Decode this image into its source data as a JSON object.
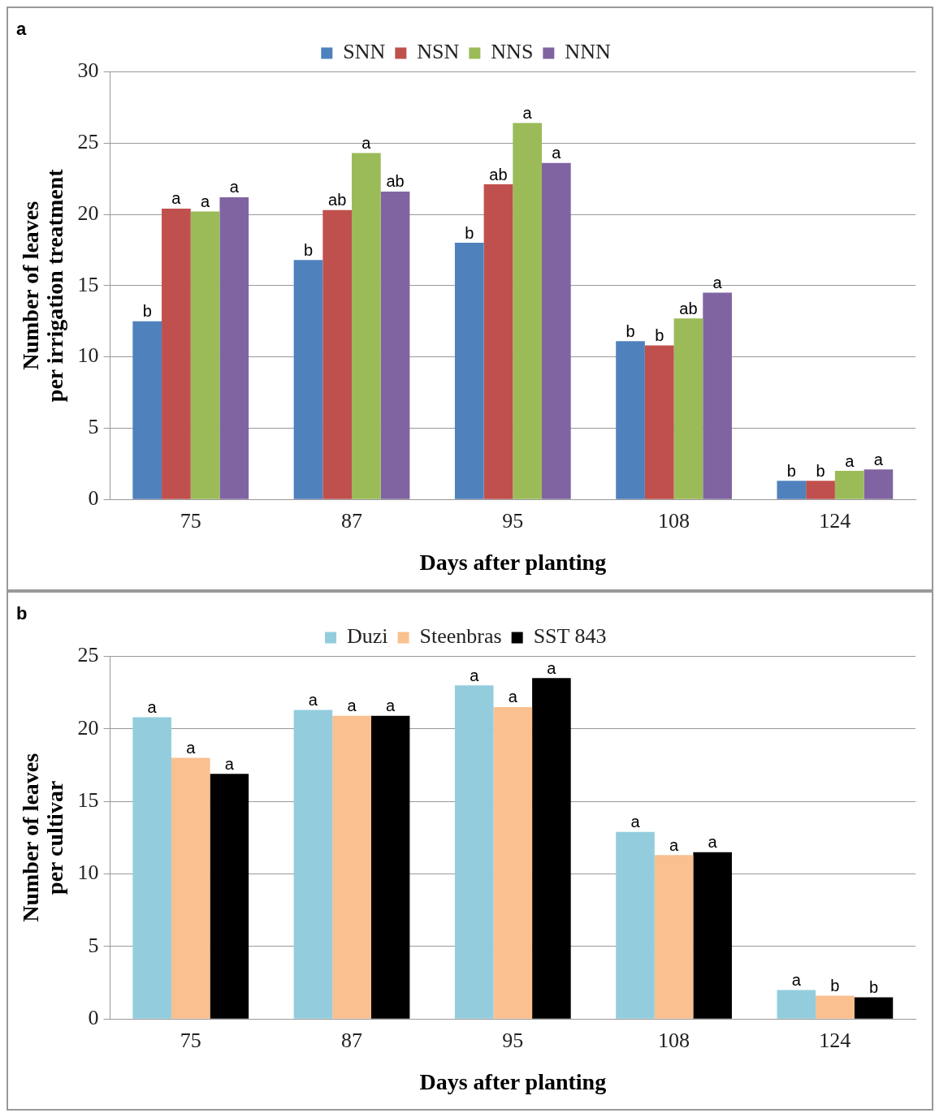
{
  "chart_data": [
    {
      "type": "bar",
      "title": "a",
      "xlabel": "Days after planting",
      "ylabel": "Number of leaves\nper irrigation treatment",
      "categories": [
        "75",
        "87",
        "95",
        "108",
        "124"
      ],
      "ylim": [
        0,
        30
      ],
      "yticks": [
        0,
        5,
        10,
        15,
        20,
        25,
        30
      ],
      "grid": "y",
      "legend": "top",
      "series": [
        {
          "name": "SNN",
          "color": "#4f81bd",
          "values": [
            12.5,
            16.8,
            18.0,
            11.1,
            1.3
          ],
          "value_labels": [
            "b",
            "b",
            "b",
            "b",
            "b"
          ]
        },
        {
          "name": "NSN",
          "color": "#c0504d",
          "values": [
            20.4,
            20.3,
            22.1,
            10.8,
            1.3
          ],
          "value_labels": [
            "a",
            "ab",
            "ab",
            "b",
            "b"
          ]
        },
        {
          "name": "NNS",
          "color": "#9bbb59",
          "values": [
            20.2,
            24.3,
            26.4,
            12.7,
            2.0
          ],
          "value_labels": [
            "a",
            "a",
            "a",
            "ab",
            "a"
          ]
        },
        {
          "name": "NNN",
          "color": "#8064a2",
          "values": [
            21.2,
            21.6,
            23.6,
            14.5,
            2.1
          ],
          "value_labels": [
            "a",
            "ab",
            "a",
            "a",
            "a"
          ]
        }
      ]
    },
    {
      "type": "bar",
      "title": "b",
      "xlabel": "Days after planting",
      "ylabel": "Number of leaves\nper cultivar",
      "categories": [
        "75",
        "87",
        "95",
        "108",
        "124"
      ],
      "ylim": [
        0,
        25
      ],
      "yticks": [
        0,
        5,
        10,
        15,
        20,
        25
      ],
      "grid": "y",
      "legend": "top",
      "series": [
        {
          "name": "Duzi",
          "color": "#93cddd",
          "values": [
            20.8,
            21.3,
            23.0,
            12.9,
            2.0
          ],
          "value_labels": [
            "a",
            "a",
            "a",
            "a",
            "a"
          ]
        },
        {
          "name": "Steenbras",
          "color": "#fac090",
          "values": [
            18.0,
            20.9,
            21.5,
            11.3,
            1.6
          ],
          "value_labels": [
            "a",
            "a",
            "a",
            "a",
            "b"
          ]
        },
        {
          "name": "SST 843",
          "color": "#000000",
          "values": [
            16.9,
            20.9,
            23.5,
            11.5,
            1.5
          ],
          "value_labels": [
            "a",
            "a",
            "a",
            "a",
            "b"
          ]
        }
      ]
    }
  ]
}
